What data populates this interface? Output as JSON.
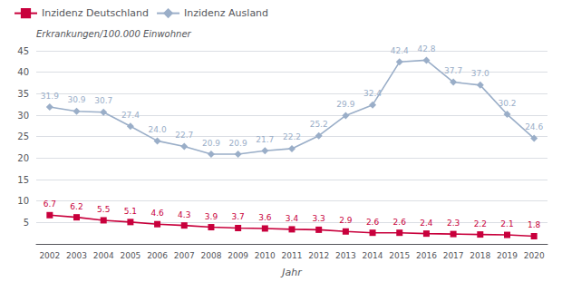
{
  "chart_data": {
    "type": "line",
    "categories": [
      "2002",
      "2003",
      "2004",
      "2005",
      "2006",
      "2007",
      "2008",
      "2009",
      "2010",
      "2011",
      "2012",
      "2013",
      "2014",
      "2015",
      "2016",
      "2017",
      "2018",
      "2019",
      "2020"
    ],
    "series": [
      {
        "name": "Inzidenz Deutschland",
        "color": "#c8003c",
        "marker": "square",
        "values": [
          6.7,
          6.2,
          5.5,
          5.1,
          4.6,
          4.3,
          3.9,
          3.7,
          3.6,
          3.4,
          3.3,
          2.9,
          2.6,
          2.6,
          2.4,
          2.3,
          2.2,
          2.1,
          1.8
        ]
      },
      {
        "name": "Inzidenz Ausland",
        "color": "#9aaec8",
        "marker": "diamond",
        "values": [
          31.9,
          30.9,
          30.7,
          27.4,
          24.0,
          22.7,
          20.9,
          20.9,
          21.7,
          22.2,
          25.2,
          29.9,
          32.4,
          42.4,
          42.8,
          37.7,
          37.0,
          30.2,
          24.6
        ]
      }
    ],
    "xlabel": "Jahr",
    "ylabel": "Erkrankungen/100.000 Einwohner",
    "ylim": [
      0,
      45
    ],
    "yticks": [
      {
        "value": 0,
        "label": ""
      },
      5,
      10,
      15,
      20,
      25,
      30,
      35,
      40,
      45
    ],
    "grid": true,
    "legend": "upper left",
    "data_labels": true
  }
}
